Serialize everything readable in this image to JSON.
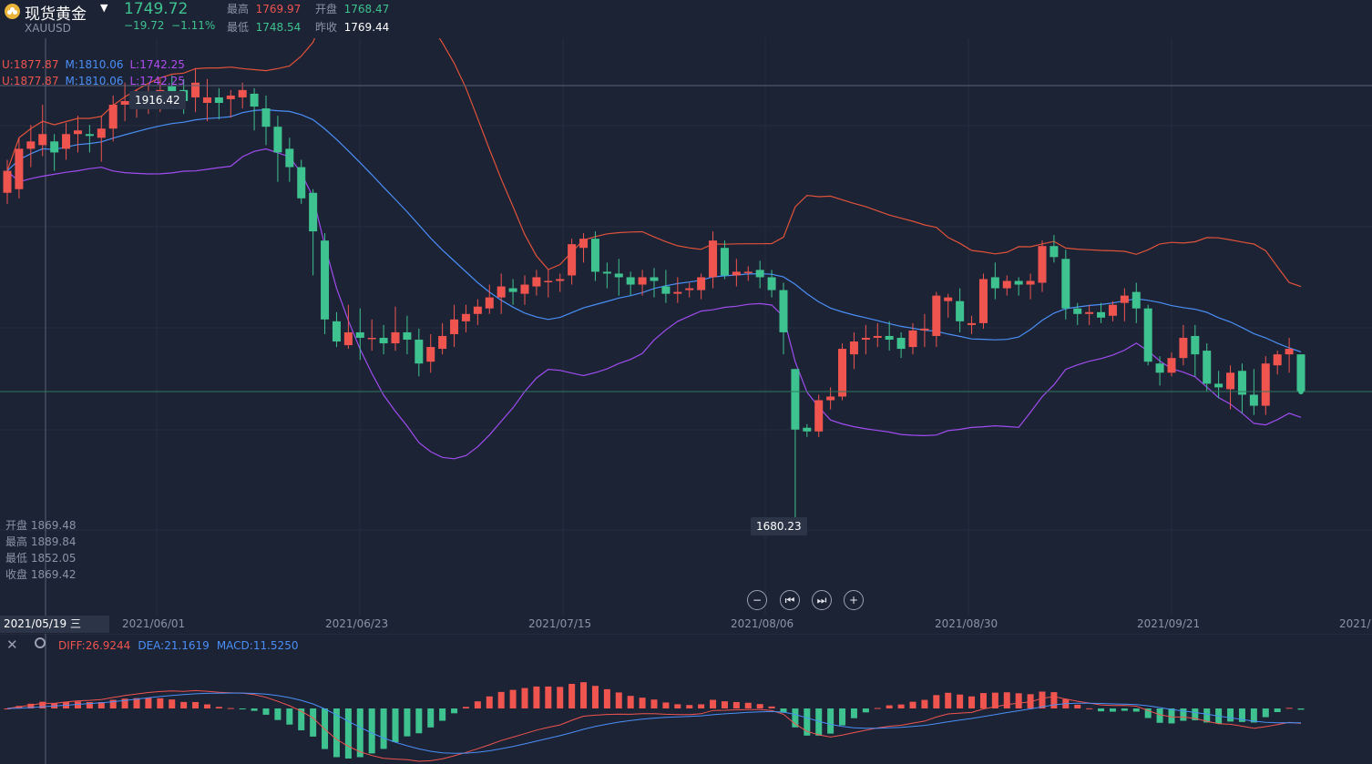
{
  "header": {
    "instrument_name": "现货黄金",
    "symbol": "XAUUSD",
    "last_price": "1749.72",
    "change_abs": "−19.72",
    "change_pct": "−1.11%",
    "high_label": "最高",
    "high_value": "1769.97",
    "open_label": "开盘",
    "open_value": "1768.47",
    "low_label": "最低",
    "low_value": "1748.54",
    "prev_close_label": "昨收",
    "prev_close_value": "1769.44",
    "dropdown_icon": "caret-down-icon",
    "logo_icon": "gold-coin-icon"
  },
  "boll": {
    "u": "U:1877.87",
    "m": "M:1810.06",
    "l": "L:1742.25"
  },
  "crosshair_price": "1916.42",
  "low_marker": "1680.23",
  "hover_ohlc": {
    "open_label": "开盘",
    "open": "1869.48",
    "high_label": "最高",
    "high": "1889.84",
    "low_label": "最低",
    "low": "1852.05",
    "close_label": "收盘",
    "close": "1869.42"
  },
  "nav": {
    "zoom_out_icon": "minus-icon",
    "back_icon": "skip-back-icon",
    "forward_icon": "skip-forward-icon",
    "zoom_in_icon": "plus-icon"
  },
  "date_axis": {
    "current": "2021/05/19 三",
    "ticks": [
      "2021/06/01",
      "2021/06/23",
      "2021/07/15",
      "2021/08/06",
      "2021/08/30",
      "2021/09/21",
      "2021/"
    ]
  },
  "macd": {
    "diff": "DIFF:26.9244",
    "dea": "DEA:21.1619",
    "macd": "MACD:11.5250",
    "close_icon": "close-icon",
    "settings_icon": "settings-icon"
  },
  "colors": {
    "background": "#1c2335",
    "up": "#f0544f",
    "down": "#3ec28f",
    "boll_upper": "#e0523a",
    "boll_mid": "#4a8ff7",
    "boll_lower": "#a04cf0",
    "diff": "#f0544f",
    "dea": "#4a8ff7"
  },
  "chart_data": {
    "type": "candlestick",
    "xlabel": "",
    "ylabel": "",
    "ylim": [
      1660,
      1940
    ],
    "candles": [
      [
        1858,
        1870,
        1852,
        1876
      ],
      [
        1860,
        1882,
        1855,
        1888
      ],
      [
        1882,
        1886,
        1872,
        1895
      ],
      [
        1884,
        1890,
        1878,
        1906
      ],
      [
        1886,
        1880,
        1870,
        1890
      ],
      [
        1882,
        1890,
        1876,
        1896
      ],
      [
        1890,
        1892,
        1880,
        1900
      ],
      [
        1890,
        1889,
        1880,
        1895
      ],
      [
        1888,
        1893,
        1875,
        1900
      ],
      [
        1893,
        1906,
        1886,
        1911
      ],
      [
        1906,
        1908,
        1897,
        1918
      ],
      [
        1907,
        1910,
        1899,
        1914
      ],
      [
        1909,
        1913,
        1901,
        1917
      ],
      [
        1912,
        1914,
        1902,
        1920
      ],
      [
        1916,
        1913,
        1905,
        1922
      ],
      [
        1914,
        1908,
        1901,
        1920
      ],
      [
        1910,
        1918,
        1902,
        1926
      ],
      [
        1907,
        1910,
        1897,
        1920
      ],
      [
        1910,
        1907,
        1898,
        1915
      ],
      [
        1909,
        1911,
        1899,
        1914
      ],
      [
        1910,
        1914,
        1904,
        1918
      ],
      [
        1912,
        1905,
        1892,
        1915
      ],
      [
        1904,
        1894,
        1884,
        1911
      ],
      [
        1894,
        1880,
        1864,
        1900
      ],
      [
        1882,
        1872,
        1864,
        1888
      ],
      [
        1872,
        1855,
        1852,
        1876
      ],
      [
        1858,
        1837,
        1813,
        1860
      ],
      [
        1832,
        1789,
        1781,
        1836
      ],
      [
        1788,
        1777,
        1774,
        1793
      ],
      [
        1775,
        1782,
        1773,
        1797
      ],
      [
        1782,
        1779,
        1767,
        1795
      ],
      [
        1779,
        1779,
        1772,
        1789
      ],
      [
        1779,
        1776,
        1770,
        1786
      ],
      [
        1776,
        1782,
        1772,
        1796
      ],
      [
        1782,
        1778,
        1770,
        1791
      ],
      [
        1778,
        1765,
        1758,
        1784
      ],
      [
        1766,
        1774,
        1760,
        1781
      ],
      [
        1773,
        1780,
        1770,
        1787
      ],
      [
        1781,
        1789,
        1774,
        1797
      ],
      [
        1788,
        1792,
        1782,
        1797
      ],
      [
        1792,
        1796,
        1786,
        1800
      ],
      [
        1795,
        1801,
        1792,
        1808
      ],
      [
        1801,
        1807,
        1792,
        1814
      ],
      [
        1806,
        1804,
        1797,
        1811
      ],
      [
        1803,
        1808,
        1797,
        1813
      ],
      [
        1807,
        1812,
        1802,
        1816
      ],
      [
        1810,
        1810,
        1801,
        1816
      ],
      [
        1810,
        1811,
        1804,
        1814
      ],
      [
        1813,
        1830,
        1808,
        1833
      ],
      [
        1828,
        1833,
        1820,
        1836
      ],
      [
        1833,
        1815,
        1810,
        1837
      ],
      [
        1815,
        1814,
        1806,
        1820
      ],
      [
        1814,
        1812,
        1802,
        1822
      ],
      [
        1812,
        1808,
        1802,
        1815
      ],
      [
        1808,
        1812,
        1802,
        1816
      ],
      [
        1812,
        1810,
        1801,
        1817
      ],
      [
        1807,
        1803,
        1798,
        1816
      ],
      [
        1803,
        1804,
        1798,
        1812
      ],
      [
        1805,
        1806,
        1801,
        1809
      ],
      [
        1805,
        1812,
        1800,
        1814
      ],
      [
        1812,
        1832,
        1806,
        1837
      ],
      [
        1828,
        1813,
        1811,
        1832
      ],
      [
        1813,
        1815,
        1807,
        1822
      ],
      [
        1815,
        1815,
        1810,
        1818
      ],
      [
        1816,
        1812,
        1806,
        1821
      ],
      [
        1812,
        1805,
        1801,
        1816
      ],
      [
        1805,
        1782,
        1770,
        1809
      ],
      [
        1762,
        1729,
        1680,
        1762
      ],
      [
        1730,
        1728,
        1725,
        1732
      ],
      [
        1728,
        1745,
        1725,
        1748
      ],
      [
        1745,
        1747,
        1740,
        1752
      ],
      [
        1747,
        1773,
        1745,
        1776
      ],
      [
        1770,
        1777,
        1762,
        1782
      ],
      [
        1778,
        1779,
        1770,
        1786
      ],
      [
        1779,
        1780,
        1774,
        1787
      ],
      [
        1780,
        1778,
        1772,
        1788
      ],
      [
        1779,
        1773,
        1768,
        1782
      ],
      [
        1774,
        1783,
        1770,
        1787
      ],
      [
        1783,
        1784,
        1774,
        1792
      ],
      [
        1780,
        1802,
        1774,
        1804
      ],
      [
        1799,
        1801,
        1790,
        1803
      ],
      [
        1799,
        1788,
        1782,
        1806
      ],
      [
        1786,
        1787,
        1781,
        1791
      ],
      [
        1787,
        1811,
        1784,
        1814
      ],
      [
        1812,
        1806,
        1800,
        1820
      ],
      [
        1806,
        1810,
        1802,
        1813
      ],
      [
        1810,
        1808,
        1802,
        1812
      ],
      [
        1808,
        1810,
        1800,
        1814
      ],
      [
        1809,
        1829,
        1804,
        1832
      ],
      [
        1829,
        1823,
        1820,
        1835
      ],
      [
        1822,
        1795,
        1789,
        1827
      ],
      [
        1795,
        1792,
        1786,
        1798
      ],
      [
        1792,
        1793,
        1786,
        1797
      ],
      [
        1793,
        1790,
        1787,
        1798
      ],
      [
        1791,
        1797,
        1788,
        1799
      ],
      [
        1798,
        1802,
        1788,
        1806
      ],
      [
        1804,
        1795,
        1787,
        1809
      ],
      [
        1795,
        1766,
        1764,
        1797
      ],
      [
        1765,
        1760,
        1753,
        1769
      ],
      [
        1760,
        1768,
        1758,
        1771
      ],
      [
        1768,
        1779,
        1764,
        1786
      ],
      [
        1780,
        1770,
        1758,
        1786
      ],
      [
        1772,
        1754,
        1750,
        1776
      ],
      [
        1754,
        1752,
        1746,
        1761
      ],
      [
        1751,
        1760,
        1740,
        1764
      ],
      [
        1761,
        1748,
        1738,
        1765
      ],
      [
        1748,
        1742,
        1737,
        1762
      ],
      [
        1742,
        1765,
        1737,
        1769
      ],
      [
        1764,
        1770,
        1759,
        1772
      ],
      [
        1770,
        1773,
        1760,
        1779
      ],
      [
        1770,
        1750,
        1749,
        1770
      ]
    ],
    "bollinger": {
      "upper_name": "U",
      "mid_name": "M",
      "lower_name": "L"
    }
  }
}
